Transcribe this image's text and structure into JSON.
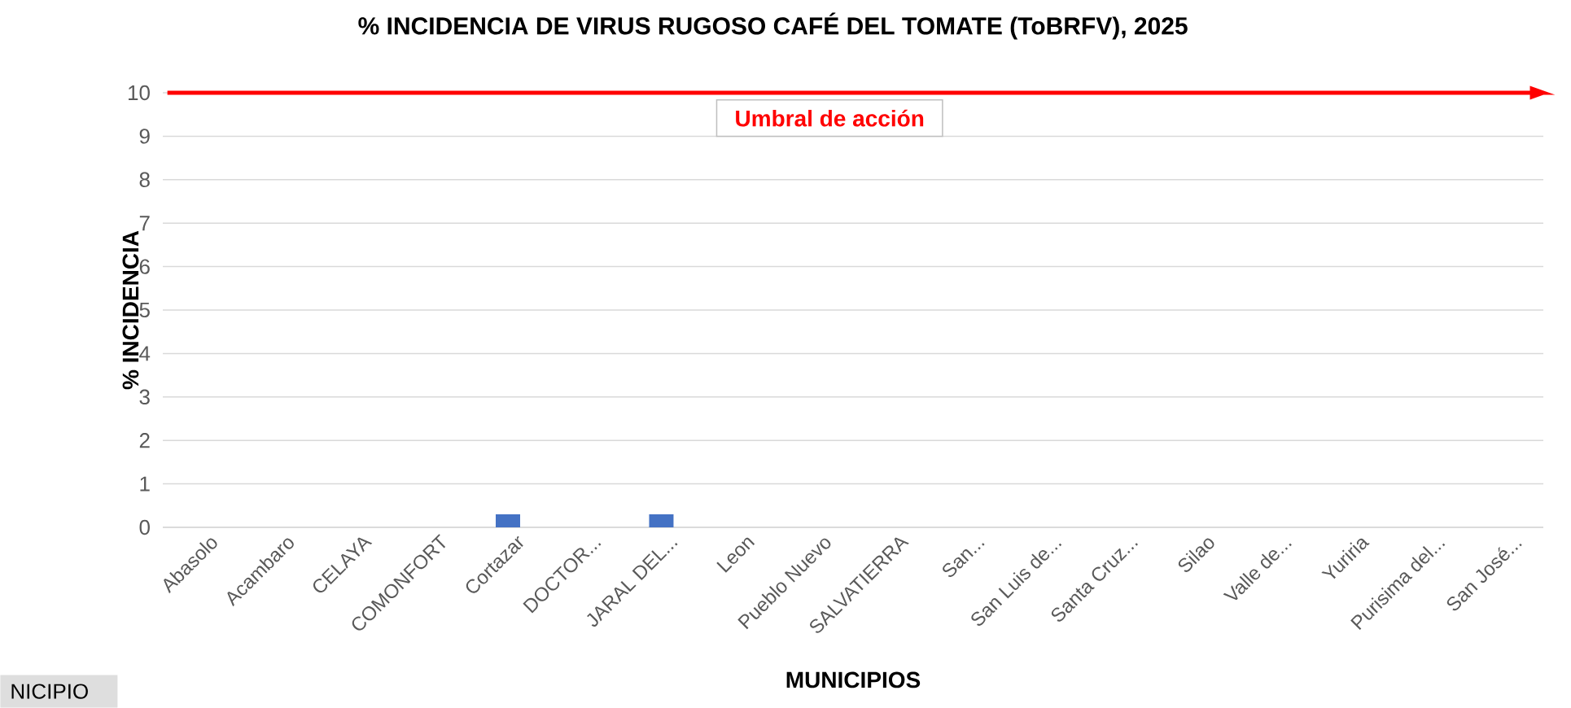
{
  "chart_data": {
    "type": "bar",
    "title": "% INCIDENCIA DE VIRUS RUGOSO CAFÉ DEL TOMATE (ToBRFV), 2025",
    "xlabel": "MUNICIPIOS",
    "ylabel": "% INCIDENCIA",
    "categories": [
      "Abasolo",
      "Acambaro",
      "CELAYA",
      "COMONFORT",
      "Cortazar",
      "DOCTOR...",
      "JARAL DEL...",
      "Leon",
      "Pueblo Nuevo",
      "SALVATIERRA",
      "San...",
      "San Luis de...",
      "Santa Cruz...",
      "Silao",
      "Valle de...",
      "Yuriria",
      "Purisima del...",
      "San José..."
    ],
    "values": [
      0,
      0,
      0,
      0,
      0.3,
      0,
      0.3,
      0,
      0,
      0,
      0,
      0,
      0,
      0,
      0,
      0,
      0,
      0
    ],
    "color": "#4472c4",
    "ylim": [
      0,
      10
    ],
    "yticks": [
      0,
      1,
      2,
      3,
      4,
      5,
      6,
      7,
      8,
      9,
      10
    ],
    "grid": "y",
    "ref_lines": [
      {
        "axis": "y",
        "value": 10,
        "label": "Umbral de acción",
        "color": "#ff0000"
      }
    ],
    "annotations": [
      "NICIPIO"
    ]
  }
}
